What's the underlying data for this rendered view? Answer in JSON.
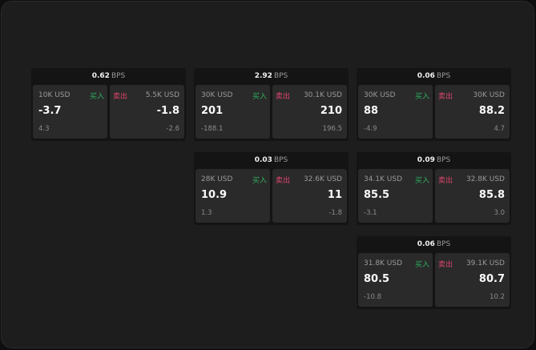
{
  "unit_label": "BPS",
  "buy_label": "买入",
  "sell_label": "卖出",
  "colors": {
    "buy": "#2fae5f",
    "sell": "#e0456f"
  },
  "cards": [
    {
      "spread": "0.62",
      "bid_size": "10K USD",
      "bid": "-3.7",
      "bid_change": "4.3",
      "ask_size": "5.5K USD",
      "ask": "-1.8",
      "ask_change": "-2.6"
    },
    {
      "spread": "2.92",
      "bid_size": "30K USD",
      "bid": "201",
      "bid_change": "-188.1",
      "ask_size": "30.1K USD",
      "ask": "210",
      "ask_change": "196.5"
    },
    {
      "spread": "0.06",
      "bid_size": "30K USD",
      "bid": "88",
      "bid_change": "-4.9",
      "ask_size": "30K USD",
      "ask": "88.2",
      "ask_change": "4.7"
    },
    {
      "spread": "0.03",
      "bid_size": "28K USD",
      "bid": "10.9",
      "bid_change": "1.3",
      "ask_size": "32.6K USD",
      "ask": "11",
      "ask_change": "-1.8"
    },
    {
      "spread": "0.09",
      "bid_size": "34.1K USD",
      "bid": "85.5",
      "bid_change": "-3.1",
      "ask_size": "32.8K USD",
      "ask": "85.8",
      "ask_change": "3.0"
    },
    {
      "spread": "0.06",
      "bid_size": "31.8K USD",
      "bid": "80.5",
      "bid_change": "-10.8",
      "ask_size": "39.1K USD",
      "ask": "80.7",
      "ask_change": "10.2"
    }
  ]
}
